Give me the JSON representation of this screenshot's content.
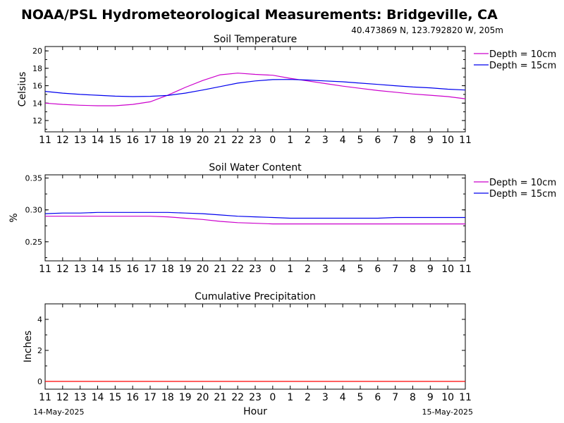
{
  "page": {
    "title": "NOAA/PSL Hydrometeorological Measurements: Bridgeville, CA",
    "location": "40.473869 N, 123.792820 W, 205m",
    "xlabel": "Hour",
    "start_date": "14-May-2025",
    "end_date": "15-May-2025"
  },
  "chart_data": [
    {
      "type": "line",
      "title": "Soil Temperature",
      "ylabel": "Celsius",
      "xlabel": "",
      "ylim": [
        10.7,
        20.5
      ],
      "yticks": [
        12,
        14,
        16,
        18,
        20
      ],
      "ytick_labels": [
        "12",
        "14",
        "16",
        "18",
        "20"
      ],
      "grid": false,
      "legend": "right",
      "x_tick_labels": [
        "11",
        "12",
        "13",
        "14",
        "15",
        "16",
        "17",
        "18",
        "19",
        "20",
        "21",
        "22",
        "23",
        "0",
        "1",
        "2",
        "3",
        "4",
        "5",
        "6",
        "7",
        "8",
        "9",
        "10",
        "11"
      ],
      "x": [
        0,
        1,
        2,
        3,
        4,
        5,
        6,
        7,
        8,
        9,
        10,
        11,
        12,
        13,
        14,
        15,
        16,
        17,
        18,
        19,
        20,
        21,
        22,
        23,
        24
      ],
      "series": [
        {
          "name": "Depth = 10cm",
          "color": "#cc00cc",
          "values": [
            14.0,
            13.85,
            13.75,
            13.7,
            13.7,
            13.85,
            14.15,
            14.9,
            15.8,
            16.6,
            17.25,
            17.45,
            17.3,
            17.2,
            16.85,
            16.55,
            16.25,
            15.95,
            15.7,
            15.45,
            15.25,
            15.05,
            14.9,
            14.75,
            14.5
          ]
        },
        {
          "name": "Depth = 15cm",
          "color": "#0000ee",
          "values": [
            15.35,
            15.15,
            15.0,
            14.9,
            14.8,
            14.75,
            14.78,
            14.88,
            15.15,
            15.5,
            15.9,
            16.3,
            16.55,
            16.7,
            16.72,
            16.65,
            16.55,
            16.45,
            16.3,
            16.15,
            16.0,
            15.85,
            15.75,
            15.6,
            15.5
          ]
        }
      ]
    },
    {
      "type": "line",
      "title": "Soil Water Content",
      "ylabel": "%",
      "xlabel": "",
      "ylim": [
        0.22,
        0.355
      ],
      "yticks": [
        0.25,
        0.3,
        0.35
      ],
      "ytick_labels": [
        "0.25",
        "0.30",
        "0.35"
      ],
      "grid": false,
      "legend": "right",
      "x_tick_labels": [
        "11",
        "12",
        "13",
        "14",
        "15",
        "16",
        "17",
        "18",
        "19",
        "20",
        "21",
        "22",
        "23",
        "0",
        "1",
        "2",
        "3",
        "4",
        "5",
        "6",
        "7",
        "8",
        "9",
        "10",
        "11"
      ],
      "x": [
        0,
        1,
        2,
        3,
        4,
        5,
        6,
        7,
        8,
        9,
        10,
        11,
        12,
        13,
        14,
        15,
        16,
        17,
        18,
        19,
        20,
        21,
        22,
        23,
        24
      ],
      "series": [
        {
          "name": "Depth = 10cm",
          "color": "#cc00cc",
          "values": [
            0.29,
            0.29,
            0.29,
            0.29,
            0.29,
            0.29,
            0.29,
            0.289,
            0.287,
            0.285,
            0.282,
            0.28,
            0.279,
            0.278,
            0.278,
            0.278,
            0.278,
            0.278,
            0.278,
            0.278,
            0.278,
            0.278,
            0.278,
            0.278,
            0.278
          ]
        },
        {
          "name": "Depth = 15cm",
          "color": "#0000ee",
          "values": [
            0.294,
            0.295,
            0.295,
            0.296,
            0.296,
            0.296,
            0.296,
            0.296,
            0.295,
            0.294,
            0.292,
            0.29,
            0.289,
            0.288,
            0.287,
            0.287,
            0.287,
            0.287,
            0.287,
            0.287,
            0.288,
            0.288,
            0.288,
            0.288,
            0.288
          ]
        }
      ]
    },
    {
      "type": "line",
      "title": "Cumulative Precipitation",
      "ylabel": "Inches",
      "xlabel": "Hour",
      "ylim": [
        -0.5,
        5.0
      ],
      "yticks": [
        0,
        2,
        4
      ],
      "ytick_labels": [
        "0",
        "2",
        "4"
      ],
      "grid": false,
      "legend": "none",
      "x_tick_labels": [
        "11",
        "12",
        "13",
        "14",
        "15",
        "16",
        "17",
        "18",
        "19",
        "20",
        "21",
        "22",
        "23",
        "0",
        "1",
        "2",
        "3",
        "4",
        "5",
        "6",
        "7",
        "8",
        "9",
        "10",
        "11"
      ],
      "x": [
        0,
        1,
        2,
        3,
        4,
        5,
        6,
        7,
        8,
        9,
        10,
        11,
        12,
        13,
        14,
        15,
        16,
        17,
        18,
        19,
        20,
        21,
        22,
        23,
        24
      ],
      "series": [
        {
          "color": "#ff0000",
          "values": [
            0,
            0,
            0,
            0,
            0,
            0,
            0,
            0,
            0,
            0,
            0,
            0,
            0,
            0,
            0,
            0,
            0,
            0,
            0,
            0,
            0,
            0,
            0,
            0,
            0
          ]
        }
      ]
    }
  ]
}
